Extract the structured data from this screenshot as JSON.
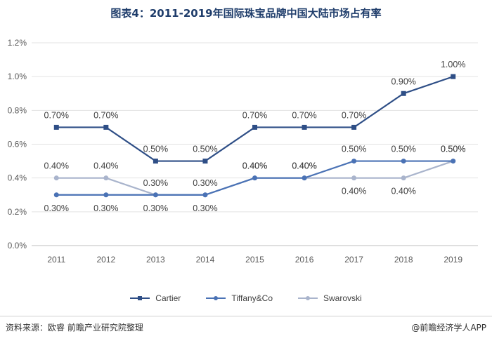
{
  "header": {
    "title": "图表4：2011-2019年国际珠宝品牌中国大陆市场占有率"
  },
  "chart_data": {
    "type": "line",
    "categories": [
      "2011",
      "2012",
      "2013",
      "2014",
      "2015",
      "2016",
      "2017",
      "2018",
      "2019"
    ],
    "ylim": [
      0,
      1.2
    ],
    "yticks": [
      "0.0%",
      "0.2%",
      "0.4%",
      "0.6%",
      "0.8%",
      "1.0%",
      "1.2%"
    ],
    "grid": true,
    "legend_position": "bottom",
    "series": [
      {
        "name": "Cartier",
        "color": "#2e4e86",
        "marker": "square",
        "values": [
          0.7,
          0.7,
          0.5,
          0.5,
          0.7,
          0.7,
          0.7,
          0.9,
          1.0
        ],
        "labels": [
          "0.70%",
          "0.70%",
          "0.50%",
          "0.50%",
          "0.70%",
          "0.70%",
          "0.70%",
          "0.90%",
          "1.00%"
        ]
      },
      {
        "name": "Tiffany&Co",
        "color": "#4a72b5",
        "marker": "dot",
        "values": [
          0.3,
          0.3,
          0.3,
          0.3,
          0.4,
          0.4,
          0.5,
          0.5,
          0.5
        ],
        "labels": [
          "0.30%",
          "0.30%",
          "0.30%",
          "0.30%",
          "0.40%",
          "0.40%",
          "0.50%",
          "0.50%",
          "0.50%"
        ]
      },
      {
        "name": "Swarovski",
        "color": "#a9b4cc",
        "marker": "dot",
        "values": [
          0.4,
          0.4,
          0.3,
          0.3,
          0.4,
          0.4,
          0.4,
          0.4,
          0.5
        ],
        "labels": [
          "0.40%",
          "0.40%",
          "0.30%",
          "0.30%",
          "0.40%",
          "0.40%",
          "0.40%",
          "0.40%",
          "0.50%"
        ]
      }
    ]
  },
  "footer": {
    "source": "资料来源：欧睿 前瞻产业研究院整理",
    "credit": "@前瞻经济学人APP"
  }
}
